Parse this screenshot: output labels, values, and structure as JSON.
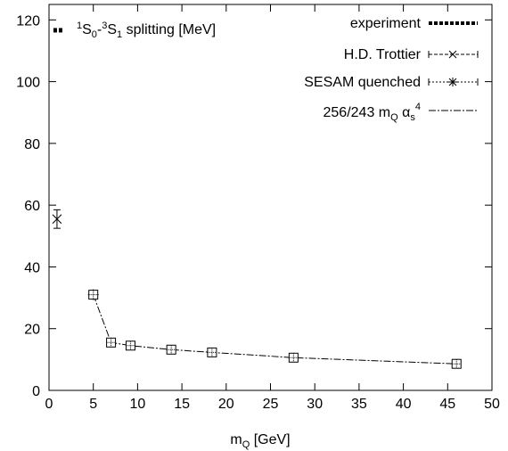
{
  "chart_data": {
    "type": "scatter",
    "title": "",
    "inset_label": {
      "pre": "1",
      "s0": "S",
      "sub0": "0",
      "dash": "-",
      "pre2": "3",
      "s1": "S",
      "sub1": "1",
      "rest": " splitting [MeV]"
    },
    "xlabel": {
      "main": "m",
      "sub": "Q",
      "rest": " [GeV]"
    },
    "ylabel": "",
    "xlim": [
      0,
      50
    ],
    "ylim": [
      0,
      125
    ],
    "xticks": [
      0,
      5,
      10,
      15,
      20,
      25,
      30,
      35,
      40,
      45,
      50
    ],
    "yticks": [
      0,
      20,
      40,
      60,
      80,
      100,
      120
    ],
    "grid": false,
    "legend_position": "top-right",
    "legend": [
      {
        "key": "experiment",
        "label": "experiment"
      },
      {
        "key": "trottier",
        "label": "H.D. Trottier"
      },
      {
        "key": "sesam",
        "label": "SESAM quenched"
      },
      {
        "key": "formula",
        "label": "256/243 m",
        "sub": "Q",
        "mid": " α",
        "sub2": "s",
        "sup": "4"
      }
    ],
    "series": [
      {
        "key": "experiment",
        "x": [
          0.9
        ],
        "y": [
          116.5
        ],
        "marker": "square"
      },
      {
        "key": "trottier",
        "x": [
          0.9
        ],
        "y": [
          55.5
        ],
        "yerr": [
          3.0
        ],
        "marker": "x"
      },
      {
        "key": "sesam",
        "x": [
          5.0
        ],
        "y": [
          31.0
        ],
        "marker": "star"
      },
      {
        "key": "formula",
        "x": [
          5.0,
          7.0,
          9.2,
          13.8,
          18.4,
          27.6,
          46.0
        ],
        "y": [
          31.0,
          15.5,
          14.5,
          13.2,
          12.3,
          10.6,
          8.6
        ],
        "marker": "boxed-dot",
        "line": "dash-dot"
      }
    ]
  }
}
